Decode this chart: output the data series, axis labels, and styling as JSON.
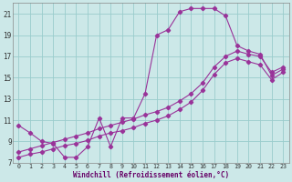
{
  "xlabel": "Windchill (Refroidissement éolien,°C)",
  "bg_color": "#cce8e8",
  "grid_color": "#99cccc",
  "line_color": "#993399",
  "xlim": [
    -0.5,
    23.5
  ],
  "ylim": [
    7,
    22
  ],
  "xticks": [
    0,
    1,
    2,
    3,
    4,
    5,
    6,
    7,
    8,
    9,
    10,
    11,
    12,
    13,
    14,
    15,
    16,
    17,
    18,
    19,
    20,
    21,
    22,
    23
  ],
  "yticks": [
    7,
    9,
    11,
    13,
    15,
    17,
    19,
    21
  ],
  "line1_x": [
    0,
    1,
    2,
    3,
    4,
    5,
    6,
    7,
    8,
    9,
    10,
    11,
    12,
    13,
    14,
    15,
    16,
    17,
    18,
    19,
    20,
    21,
    22,
    23
  ],
  "line1_y": [
    10.5,
    9.8,
    9.0,
    8.8,
    7.5,
    7.5,
    8.5,
    11.2,
    8.5,
    11.2,
    11.2,
    13.5,
    19.0,
    19.5,
    21.2,
    21.5,
    21.5,
    21.5,
    20.8,
    18.0,
    17.5,
    17.2,
    15.2,
    15.8
  ],
  "line2_x": [
    0,
    1,
    2,
    3,
    4,
    5,
    6,
    7,
    8,
    9,
    10,
    11,
    12,
    13,
    14,
    15,
    16,
    17,
    18,
    19,
    20,
    21,
    22,
    23
  ],
  "line2_y": [
    8.0,
    8.3,
    8.6,
    8.9,
    9.2,
    9.5,
    9.8,
    10.2,
    10.5,
    10.8,
    11.1,
    11.5,
    11.8,
    12.2,
    12.8,
    13.5,
    14.5,
    16.0,
    17.0,
    17.5,
    17.2,
    17.0,
    15.5,
    16.0
  ],
  "line3_x": [
    0,
    1,
    2,
    3,
    4,
    5,
    6,
    7,
    8,
    9,
    10,
    11,
    12,
    13,
    14,
    15,
    16,
    17,
    18,
    19,
    20,
    21,
    22,
    23
  ],
  "line3_y": [
    7.5,
    7.8,
    8.0,
    8.3,
    8.6,
    8.8,
    9.1,
    9.5,
    9.8,
    10.0,
    10.3,
    10.7,
    11.0,
    11.4,
    12.0,
    12.7,
    13.8,
    15.3,
    16.4,
    16.8,
    16.5,
    16.2,
    14.8,
    15.5
  ]
}
